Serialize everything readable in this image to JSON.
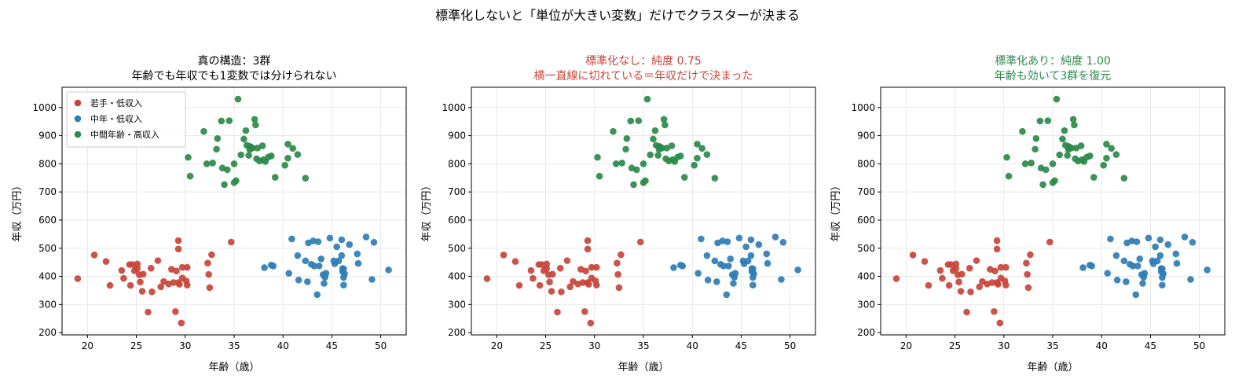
{
  "suptitle": "標準化しないと「単位が大きい変数」だけでクラスターが決まる",
  "colors": {
    "red": "#c8443a",
    "blue": "#2e7db5",
    "green": "#2a8a4a",
    "title_red": "#c8443a",
    "title_green": "#2a8a4a",
    "title_black": "#000000"
  },
  "groups": {
    "red": [
      [
        19,
        392
      ],
      [
        20.7,
        476
      ],
      [
        21.9,
        453
      ],
      [
        22.3,
        368
      ],
      [
        23.5,
        421
      ],
      [
        23.7,
        393
      ],
      [
        24.3,
        442
      ],
      [
        24.4,
        368
      ],
      [
        24.6,
        442
      ],
      [
        24.8,
        420
      ],
      [
        25.1,
        444
      ],
      [
        25.1,
        428
      ],
      [
        25.3,
        406
      ],
      [
        25.4,
        380
      ],
      [
        25.6,
        347
      ],
      [
        25.7,
        408
      ],
      [
        26.2,
        273
      ],
      [
        26.5,
        429
      ],
      [
        26.6,
        345
      ],
      [
        27.2,
        456
      ],
      [
        27.5,
        363
      ],
      [
        27.8,
        382
      ],
      [
        28.3,
        373
      ],
      [
        28.6,
        425
      ],
      [
        28.8,
        378
      ],
      [
        29.0,
        275
      ],
      [
        29.1,
        419
      ],
      [
        29.3,
        527
      ],
      [
        29.3,
        378
      ],
      [
        29.3,
        497
      ],
      [
        29.4,
        372
      ],
      [
        29.6,
        234
      ],
      [
        29.7,
        432
      ],
      [
        29.7,
        394
      ],
      [
        30.1,
        384
      ],
      [
        30.2,
        432
      ],
      [
        30.2,
        369
      ],
      [
        32.3,
        447
      ],
      [
        32.4,
        407
      ],
      [
        32.5,
        360
      ],
      [
        32.7,
        477
      ],
      [
        34.7,
        522
      ]
    ],
    "blue": [
      [
        38.1,
        431
      ],
      [
        38.8,
        440
      ],
      [
        39,
        437
      ],
      [
        40.6,
        411
      ],
      [
        40.9,
        533
      ],
      [
        41.5,
        474
      ],
      [
        41.6,
        387
      ],
      [
        42.3,
        455
      ],
      [
        42.5,
        381
      ],
      [
        42.6,
        519
      ],
      [
        42.9,
        443
      ],
      [
        43.1,
        526
      ],
      [
        43.2,
        437
      ],
      [
        43.5,
        335
      ],
      [
        43.6,
        523
      ],
      [
        43.7,
        437
      ],
      [
        43.9,
        462
      ],
      [
        44.1,
        406
      ],
      [
        44.2,
        375
      ],
      [
        44.3,
        397
      ],
      [
        44.4,
        411
      ],
      [
        44.8,
        536
      ],
      [
        45.2,
        455
      ],
      [
        45.3,
        445
      ],
      [
        45.5,
        505
      ],
      [
        45.7,
        455
      ],
      [
        46,
        530
      ],
      [
        46,
        474
      ],
      [
        46.1,
        417
      ],
      [
        46.1,
        428
      ],
      [
        46.2,
        396
      ],
      [
        46.2,
        369
      ],
      [
        46.2,
        427
      ],
      [
        46.3,
        409
      ],
      [
        46.8,
        513
      ],
      [
        47.6,
        480
      ],
      [
        47.7,
        446
      ],
      [
        48.5,
        540
      ],
      [
        49.1,
        389
      ],
      [
        49.3,
        521
      ],
      [
        50.8,
        423
      ]
    ],
    "green": [
      [
        30.3,
        823
      ],
      [
        30.5,
        756
      ],
      [
        31.9,
        915
      ],
      [
        32.2,
        800
      ],
      [
        32.8,
        803
      ],
      [
        33.2,
        852
      ],
      [
        33.3,
        890
      ],
      [
        33.7,
        952
      ],
      [
        33.8,
        785
      ],
      [
        34,
        726
      ],
      [
        34.3,
        779
      ],
      [
        34.5,
        953
      ],
      [
        35,
        733
      ],
      [
        35,
        800
      ],
      [
        35.4,
        1030
      ],
      [
        35.7,
        832
      ],
      [
        36,
        888
      ],
      [
        36.2,
        918
      ],
      [
        36.3,
        866
      ],
      [
        36.5,
        830
      ],
      [
        36.6,
        851
      ],
      [
        36.7,
        860
      ],
      [
        36.9,
        856
      ],
      [
        37.1,
        958
      ],
      [
        37.2,
        938
      ],
      [
        37.3,
        818
      ],
      [
        37.4,
        856
      ],
      [
        37.6,
        810
      ],
      [
        37.9,
        864
      ],
      [
        38,
        815
      ],
      [
        38.2,
        808
      ],
      [
        38.5,
        824
      ],
      [
        38.8,
        828
      ],
      [
        39.2,
        752
      ],
      [
        40.2,
        795
      ],
      [
        40.5,
        870
      ],
      [
        40.5,
        820
      ],
      [
        41,
        855
      ],
      [
        41.5,
        833
      ],
      [
        42.3,
        749
      ],
      [
        35.2,
        740
      ],
      [
        36.6,
        862
      ]
    ]
  },
  "chart_data": [
    {
      "type": "scatter",
      "title_lines": [
        "真の構造：3群",
        "年齢でも年収でも1変数では分けられない"
      ],
      "title_color": "#000000",
      "xlabel": "年齢（歳）",
      "ylabel": "年収（万円）",
      "xlim": [
        17.4,
        52.6
      ],
      "ylim": [
        192,
        1072
      ],
      "xticks": [
        20,
        25,
        30,
        35,
        40,
        45,
        50
      ],
      "yticks": [
        200,
        300,
        400,
        500,
        600,
        700,
        800,
        900,
        1000
      ],
      "grid": true,
      "legend": {
        "placement": "top-left",
        "entries": [
          {
            "label": "若手・低収入",
            "color": "#c8443a"
          },
          {
            "label": "中年・低収入",
            "color": "#2e7db5"
          },
          {
            "label": "中間年齢・高収入",
            "color": "#2a8a4a"
          }
        ]
      },
      "coloring": "true_groups",
      "series": [
        {
          "name": "若手・低収入",
          "color": "#c8443a",
          "group": "red"
        },
        {
          "name": "中年・低収入",
          "color": "#2e7db5",
          "group": "blue"
        },
        {
          "name": "中間年齢・高収入",
          "color": "#2a8a4a",
          "group": "green"
        }
      ]
    },
    {
      "type": "scatter",
      "title_lines": [
        "標準化なし：純度 0.75",
        "横一直線に切れている＝年収だけで決まった"
      ],
      "title_color": "#c8443a",
      "xlabel": "年齢（歳）",
      "ylabel": "年収（万円）",
      "xlim": [
        17.4,
        52.6
      ],
      "ylim": [
        192,
        1072
      ],
      "xticks": [
        20,
        25,
        30,
        35,
        40,
        45,
        50
      ],
      "yticks": [
        200,
        300,
        400,
        500,
        600,
        700,
        800,
        900,
        1000
      ],
      "grid": true,
      "coloring": "split_at_age_37",
      "series": [
        {
          "color": "#c8443a",
          "rule": "low income, age < 37"
        },
        {
          "color": "#2e7db5",
          "rule": "low income, age >= 37"
        },
        {
          "color": "#2a8a4a",
          "rule": "high income"
        }
      ]
    },
    {
      "type": "scatter",
      "title_lines": [
        "標準化あり：純度 1.00",
        "年齢も効いて3群を復元"
      ],
      "title_color": "#2a8a4a",
      "xlabel": "年齢（歳）",
      "ylabel": "年収（万円）",
      "xlim": [
        17.4,
        52.6
      ],
      "ylim": [
        192,
        1072
      ],
      "xticks": [
        20,
        25,
        30,
        35,
        40,
        45,
        50
      ],
      "yticks": [
        200,
        300,
        400,
        500,
        600,
        700,
        800,
        900,
        1000
      ],
      "grid": true,
      "coloring": "true_groups",
      "series": [
        {
          "color": "#c8443a",
          "group": "red"
        },
        {
          "color": "#2e7db5",
          "group": "blue"
        },
        {
          "color": "#2a8a4a",
          "group": "green"
        }
      ]
    }
  ]
}
